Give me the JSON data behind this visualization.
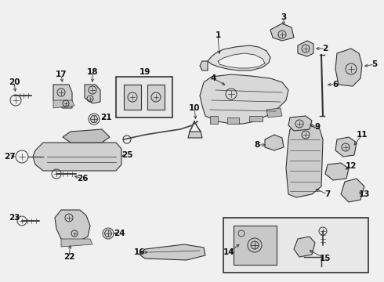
{
  "bg_color": "#f0f0f0",
  "fig_width": 4.9,
  "fig_height": 3.6,
  "dpi": 100,
  "label_fontsize": 7.5,
  "part_color": "#cccccc",
  "edge_color": "#333333",
  "line_color": "#444444"
}
